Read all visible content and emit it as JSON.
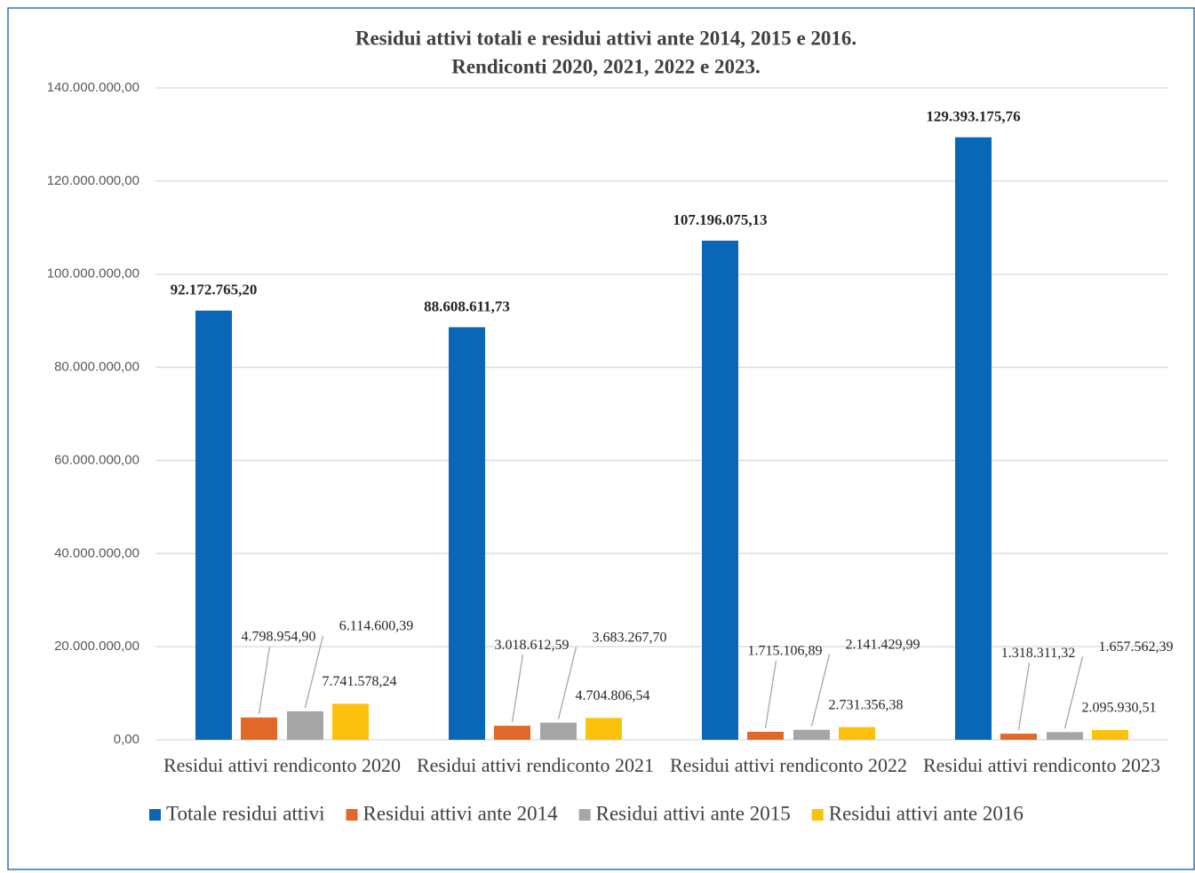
{
  "chart_data": {
    "type": "bar",
    "title": "Residui attivi totali e residui attivi ante 2014, 2015 e 2016.",
    "subtitle": "Rendiconti 2020, 2021, 2022 e 2023.",
    "categories": [
      "Residui attivi rendiconto 2020",
      "Residui attivi rendiconto 2021",
      "Residui attivi rendiconto 2022",
      "Residui attivi rendiconto 2023"
    ],
    "series": [
      {
        "name": "Totale residui attivi",
        "color": "#0a67b7",
        "values": [
          92172765.2,
          88608611.73,
          107196075.13,
          129393175.76
        ],
        "value_labels": [
          "92.172.765,20",
          "88.608.611,73",
          "107.196.075,13",
          "129.393.175,76"
        ]
      },
      {
        "name": "Residui attivi ante 2014",
        "color": "#e2682a",
        "values": [
          4798954.9,
          3018612.59,
          1715106.89,
          1318311.32
        ],
        "value_labels": [
          "4.798.954,90",
          "3.018.612,59",
          "1.715.106,89",
          "1.318.311,32"
        ]
      },
      {
        "name": "Residui attivi ante 2015",
        "color": "#a6a6a6",
        "values": [
          6114600.39,
          3683267.7,
          2141429.99,
          1657562.39
        ],
        "value_labels": [
          "6.114.600,39",
          "3.683.267,70",
          "2.141.429,99",
          "1.657.562,39"
        ]
      },
      {
        "name": "Residui attivi ante 2016",
        "color": "#fcc10c",
        "values": [
          7741578.24,
          4704806.54,
          2731356.38,
          2095930.51
        ],
        "value_labels": [
          "7.741.578,24",
          "4.704.806,54",
          "2.731.356,38",
          "2.095.930,51"
        ]
      }
    ],
    "ylim": [
      0,
      140000000
    ],
    "yticks": [
      {
        "value": 0,
        "label": "0,00"
      },
      {
        "value": 20000000,
        "label": "20.000.000,00"
      },
      {
        "value": 40000000,
        "label": "40.000.000,00"
      },
      {
        "value": 60000000,
        "label": "60.000.000,00"
      },
      {
        "value": 80000000,
        "label": "80.000.000,00"
      },
      {
        "value": 100000000,
        "label": "100.000.000,00"
      },
      {
        "value": 120000000,
        "label": "120.000.000,00"
      },
      {
        "value": 140000000,
        "label": "140.000.000,00"
      }
    ],
    "grid": true,
    "legend": "bottom"
  }
}
